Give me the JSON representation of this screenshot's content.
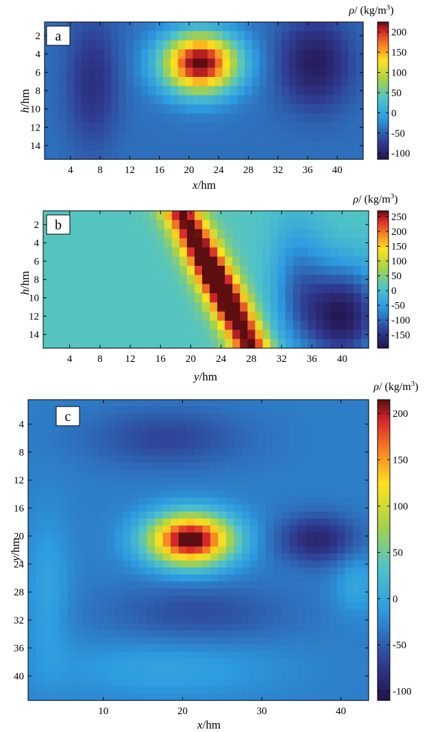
{
  "chart_data": [
    {
      "type": "heatmap",
      "panel_label": "a",
      "xlabel_var": "x",
      "xlabel_unit": "/hm",
      "ylabel_var": "h",
      "ylabel_unit": "/hm",
      "colorbar_title": "ρ/ (kg/m³)",
      "colorbar_title_var": "ρ",
      "colorbar_title_unit": "/ (kg/m",
      "colorbar_title_exp": "3",
      "colorbar_title_close": ")",
      "x_range": [
        1,
        43
      ],
      "y_range": [
        1,
        15
      ],
      "x_ticks": [
        4,
        8,
        12,
        16,
        20,
        24,
        28,
        32,
        36,
        40
      ],
      "y_ticks": [
        2,
        4,
        6,
        8,
        10,
        12,
        14
      ],
      "y_reversed": true,
      "grid": false,
      "color_range": [
        -115,
        225
      ],
      "colorbar_ticks": [
        200,
        150,
        100,
        50,
        0,
        -50,
        -100
      ],
      "colormap": "jet",
      "model": {
        "base": -40,
        "blobs": [
          {
            "cx": 21.5,
            "cy": 5,
            "sx": 3.6,
            "sy": 2.3,
            "amp": 275
          },
          {
            "cx": 37,
            "cy": 5,
            "sx": 3.5,
            "sy": 3.5,
            "amp": -65
          },
          {
            "cx": 7,
            "cy": 7,
            "sx": 2.5,
            "sy": 5,
            "amp": -45
          }
        ]
      }
    },
    {
      "type": "heatmap",
      "panel_label": "b",
      "xlabel_var": "y",
      "xlabel_unit": "/hm",
      "ylabel_var": "h",
      "ylabel_unit": "/hm",
      "colorbar_title": "ρ/ (kg/m³)",
      "colorbar_title_var": "ρ",
      "colorbar_title_unit": "/ (kg/m",
      "colorbar_title_exp": "3",
      "colorbar_title_close": ")",
      "x_range": [
        1,
        43
      ],
      "y_range": [
        1,
        15
      ],
      "x_ticks": [
        4,
        8,
        12,
        16,
        20,
        24,
        28,
        32,
        36,
        40
      ],
      "y_ticks": [
        2,
        4,
        6,
        8,
        10,
        12,
        14
      ],
      "y_reversed": true,
      "grid": false,
      "color_range": [
        -195,
        270
      ],
      "colorbar_ticks": [
        250,
        200,
        150,
        100,
        50,
        0,
        -50,
        -100,
        -150
      ],
      "colormap": "jet",
      "model": {
        "base": 15,
        "dike": {
          "x0": 19,
          "x_slope": 0.62,
          "y_ref": 1,
          "width": 1.9,
          "amp": 250,
          "mid_y": 8.5,
          "mid_boost": 0.3
        },
        "blobs": [
          {
            "cx": 40,
            "cy": 12,
            "sx": 4,
            "sy": 4,
            "amp": -200
          },
          {
            "cx": 34,
            "cy": 8,
            "sx": 2.5,
            "sy": 5,
            "amp": -80
          }
        ]
      }
    },
    {
      "type": "heatmap",
      "panel_label": "c",
      "xlabel_var": "x",
      "xlabel_unit": "/hm",
      "ylabel_var": "y",
      "ylabel_unit": "/hm",
      "colorbar_title": "ρ/ (kg/m³)",
      "colorbar_title_var": "ρ",
      "colorbar_title_unit": "/ (kg/m",
      "colorbar_title_exp": "3",
      "colorbar_title_close": ")",
      "x_range": [
        1,
        43
      ],
      "y_range": [
        1,
        43
      ],
      "x_ticks": [
        10,
        20,
        30,
        40
      ],
      "y_ticks": [
        4,
        8,
        12,
        16,
        20,
        24,
        28,
        32,
        36,
        40
      ],
      "y_reversed": true,
      "grid": false,
      "color_range": [
        -110,
        215
      ],
      "colorbar_ticks": [
        200,
        150,
        100,
        50,
        0,
        -50,
        -100
      ],
      "colormap": "jet",
      "model": {
        "base": -30,
        "blobs": [
          {
            "cx": 21,
            "cy": 20.5,
            "sx": 3.8,
            "sy": 2.6,
            "amp": 260
          },
          {
            "cx": 37,
            "cy": 20.5,
            "sx": 3.5,
            "sy": 2.5,
            "amp": -60
          },
          {
            "cx": 18,
            "cy": 6,
            "sx": 7,
            "sy": 3,
            "amp": -35
          },
          {
            "cx": 22,
            "cy": 31,
            "sx": 8,
            "sy": 3,
            "amp": -30
          },
          {
            "cx": 18,
            "cy": 39,
            "sx": 10,
            "sy": 3,
            "amp": 25
          },
          {
            "cx": 3,
            "cy": 28,
            "sx": 2,
            "sy": 8,
            "amp": 25
          },
          {
            "cx": 42,
            "cy": 27,
            "sx": 2,
            "sy": 3,
            "amp": 30
          }
        ]
      }
    }
  ]
}
